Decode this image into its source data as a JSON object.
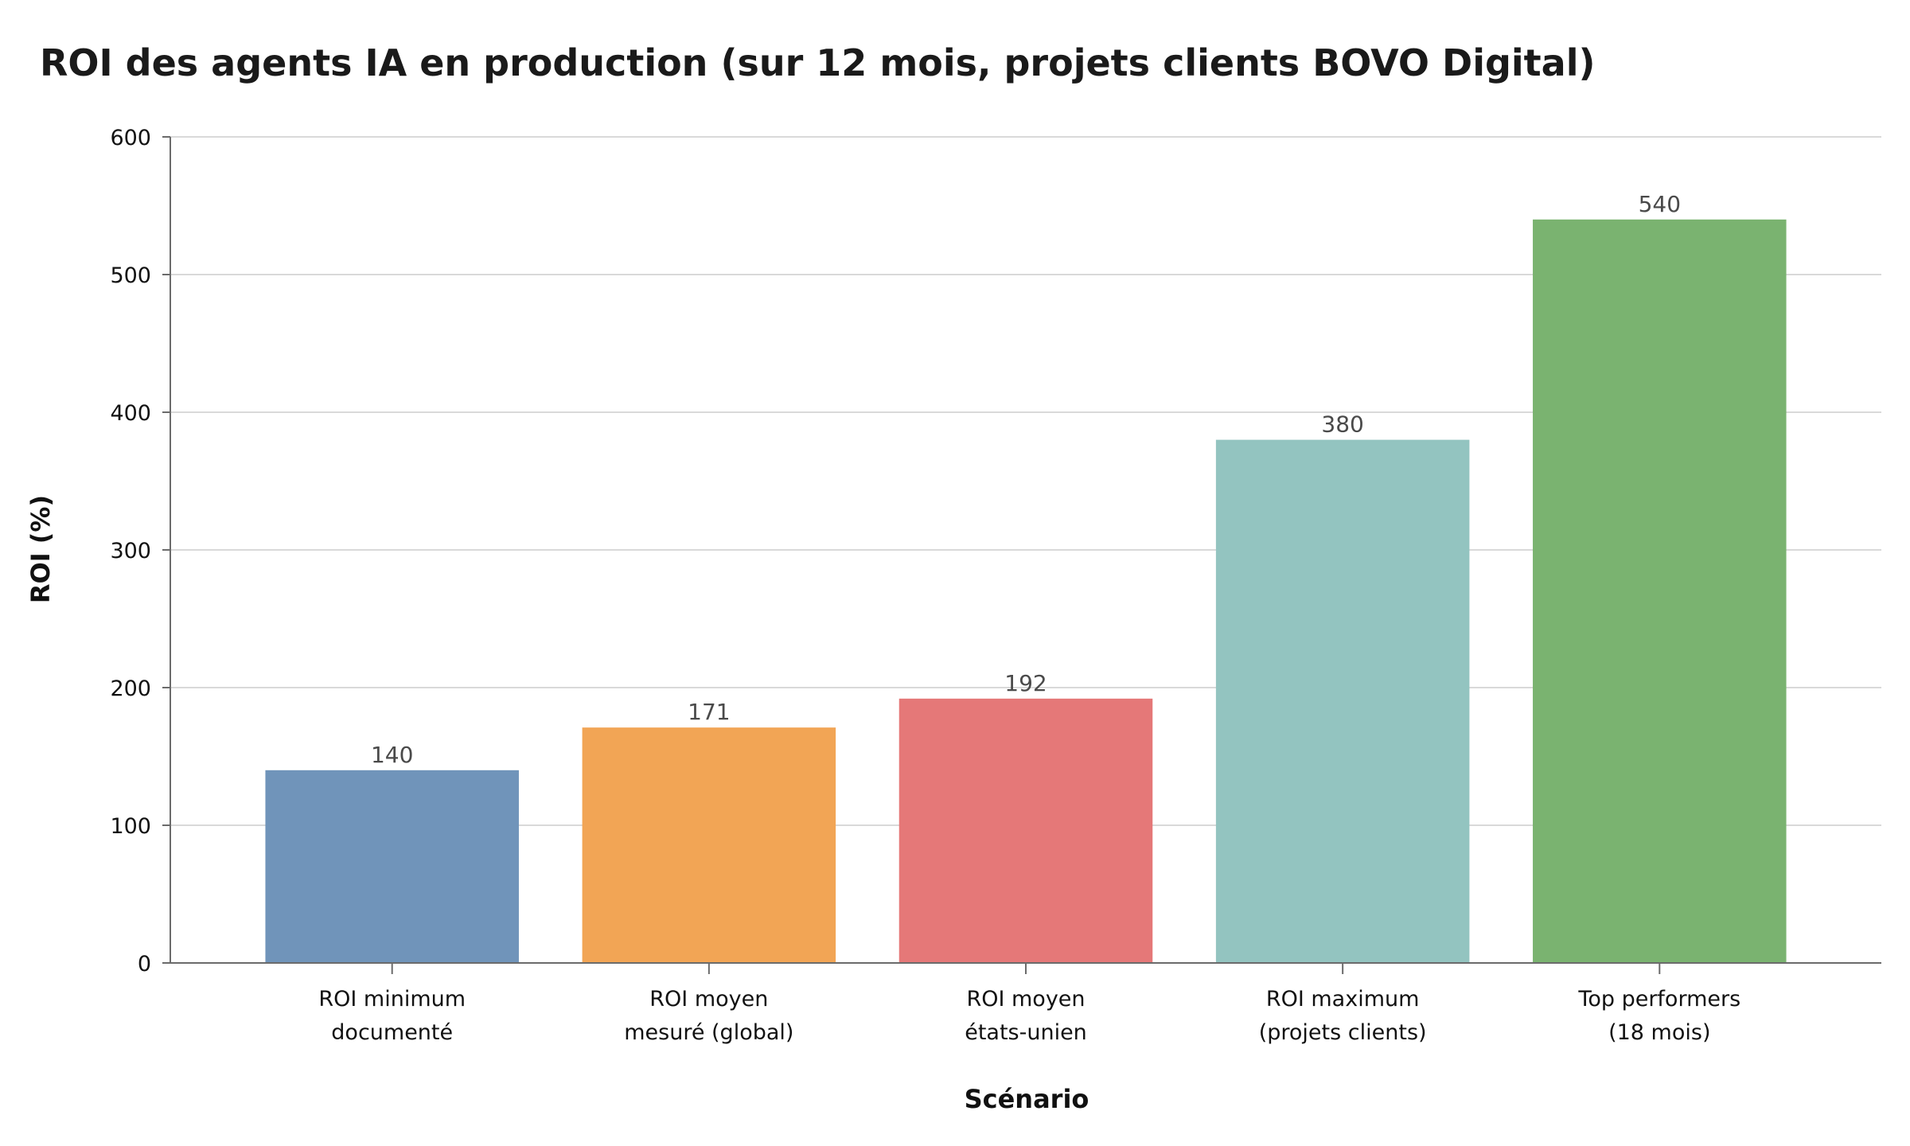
{
  "chart_data": {
    "type": "bar",
    "title": "ROI des agents IA en production (sur 12 mois, projets clients BOVO Digital)",
    "xlabel": "Scénario",
    "ylabel": "ROI (%)",
    "categories": [
      [
        "ROI minimum",
        "documenté"
      ],
      [
        "ROI moyen",
        "mesuré (global)"
      ],
      [
        "ROI moyen",
        "états-unien"
      ],
      [
        "ROI maximum",
        "(projets clients)"
      ],
      [
        "Top performers",
        "(18 mois)"
      ]
    ],
    "values": [
      140,
      171,
      192,
      380,
      540
    ],
    "value_labels": [
      "140",
      "171",
      "192",
      "380",
      "540"
    ],
    "colors": [
      "#7094ba",
      "#f2a555",
      "#e57878",
      "#93c4c0",
      "#7ab370"
    ],
    "ylim": [
      0,
      600
    ],
    "yticks": [
      0,
      100,
      200,
      300,
      400,
      500,
      600
    ],
    "grid": true,
    "legend": "none"
  }
}
